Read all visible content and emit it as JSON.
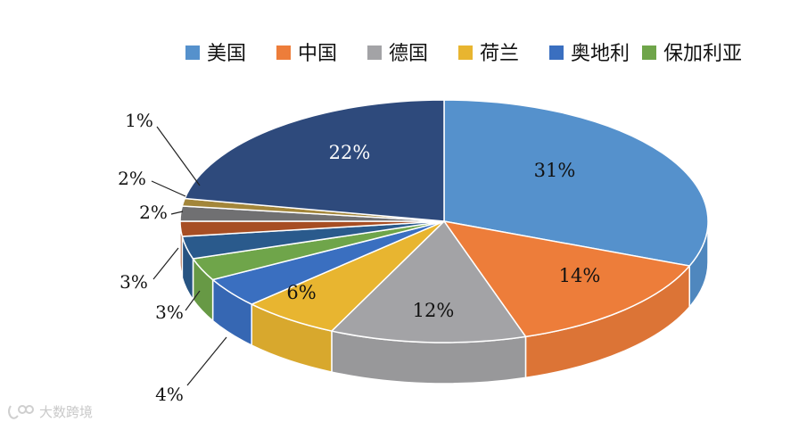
{
  "chart_data": {
    "type": "pie",
    "variant": "3d",
    "legend_position": "top",
    "legend": [
      "美国",
      "中国",
      "德国",
      "荷兰",
      "奥地利",
      "保加利亚"
    ],
    "slices": [
      {
        "name": "美国",
        "value": 31,
        "label": "31%",
        "color": "#5591CC"
      },
      {
        "name": "中国",
        "value": 14,
        "label": "14%",
        "color": "#ED7D3A"
      },
      {
        "name": "德国",
        "value": 12,
        "label": "12%",
        "color": "#A3A3A6"
      },
      {
        "name": "荷兰",
        "value": 6,
        "label": "6%",
        "color": "#E8B530"
      },
      {
        "name": "奥地利",
        "value": 4,
        "label": "4%",
        "color": "#3A6FC0"
      },
      {
        "name": "保加利亚",
        "value": 3,
        "label": "3%",
        "color": "#6FA54A"
      },
      {
        "name": "",
        "value": 3,
        "label": "3%",
        "color": "#2A5A8C"
      },
      {
        "name": "",
        "value": 2,
        "label": "2%",
        "color": "#A74E24"
      },
      {
        "name": "",
        "value": 2,
        "label": "2%",
        "color": "#707072"
      },
      {
        "name": "",
        "value": 1,
        "label": "1%",
        "color": "#A3863A"
      },
      {
        "name": "",
        "value": 22,
        "label": "22%",
        "color": "#2E4A7C"
      }
    ]
  },
  "watermark": "大数跨境"
}
